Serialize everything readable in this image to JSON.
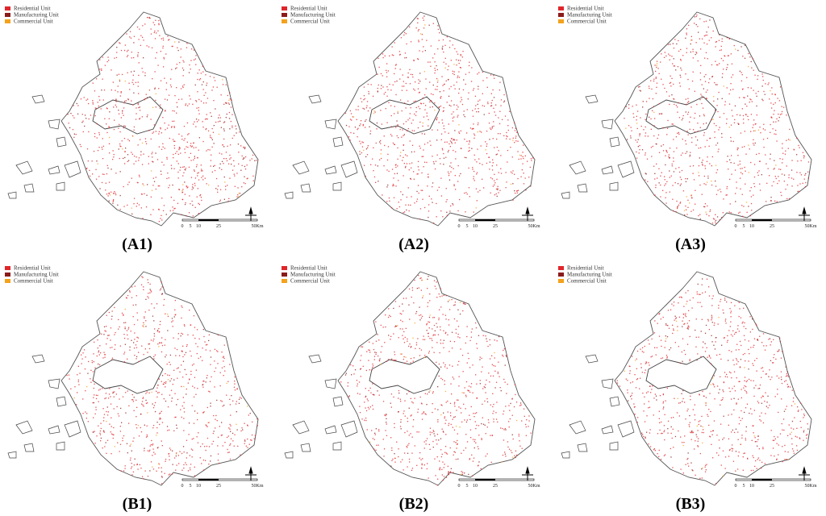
{
  "legend": [
    {
      "name": "Residential Unit",
      "color": "#e0262b"
    },
    {
      "name": "Manufacturing Unit",
      "color": "#8b1b1b"
    },
    {
      "name": "Commercial Unit",
      "color": "#f4a21c"
    }
  ],
  "scale": [
    "0",
    "5",
    "10",
    "25",
    "50Km"
  ],
  "panels": [
    {
      "label": "(A1)"
    },
    {
      "label": "(A2)"
    },
    {
      "label": "(A3)"
    },
    {
      "label": "(B1)"
    },
    {
      "label": "(B2)"
    },
    {
      "label": "(B3)"
    }
  ]
}
